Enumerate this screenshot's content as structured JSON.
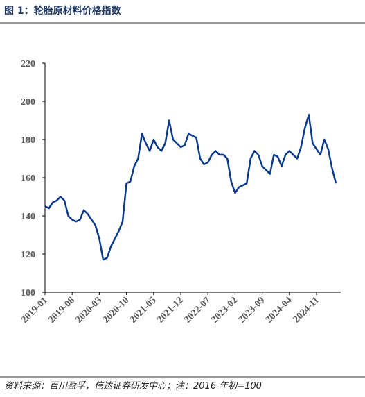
{
  "chart_data": {
    "type": "line",
    "title": "图 1：轮胎原材料价格指数",
    "source": "资料来源：百川盈孚，信达证券研发中心；注：2016 年初=100",
    "x": [
      "2019-01",
      "2019-02",
      "2019-03",
      "2019-04",
      "2019-05",
      "2019-06",
      "2019-07",
      "2019-08",
      "2019-09",
      "2019-10",
      "2019-11",
      "2019-12",
      "2020-01",
      "2020-02",
      "2020-03",
      "2020-04",
      "2020-05",
      "2020-06",
      "2020-07",
      "2020-08",
      "2020-09",
      "2020-10",
      "2020-11",
      "2020-12",
      "2021-01",
      "2021-02",
      "2021-03",
      "2021-04",
      "2021-05",
      "2021-06",
      "2021-07",
      "2021-08",
      "2021-09",
      "2021-10",
      "2021-11",
      "2021-12",
      "2022-01",
      "2022-02",
      "2022-03",
      "2022-04",
      "2022-05",
      "2022-06",
      "2022-07",
      "2022-08",
      "2022-09",
      "2022-10",
      "2022-11",
      "2022-12",
      "2023-01",
      "2023-02",
      "2023-03",
      "2023-04",
      "2023-05",
      "2023-06",
      "2023-07",
      "2023-08",
      "2023-09",
      "2023-10",
      "2023-11",
      "2023-12",
      "2024-01",
      "2024-02",
      "2024-03",
      "2024-04",
      "2024-05",
      "2024-06",
      "2024-07",
      "2024-08",
      "2024-09",
      "2024-10",
      "2024-11",
      "2024-12",
      "2025-01",
      "2025-02",
      "2025-03",
      "2025-04"
    ],
    "series": [
      {
        "color": "#0b3a8c",
        "values": [
          145,
          144,
          147,
          148,
          150,
          148,
          140,
          138,
          137,
          138,
          143,
          141,
          138,
          135,
          128,
          117,
          118,
          124,
          128,
          132,
          137,
          157,
          158,
          166,
          170,
          183,
          178,
          174,
          180,
          176,
          174,
          178,
          190,
          180,
          178,
          176,
          177,
          183,
          182,
          181,
          170,
          167,
          168,
          172,
          174,
          172,
          172,
          170,
          158,
          152,
          155,
          156,
          157,
          170,
          174,
          172,
          166,
          164,
          162,
          172,
          171,
          166,
          172,
          174,
          172,
          170,
          176,
          186,
          193,
          178,
          175,
          172,
          180,
          175,
          165,
          157
        ]
      }
    ],
    "xticks": [
      "2019-01",
      "2019-08",
      "2020-03",
      "2020-10",
      "2021-05",
      "2021-12",
      "2022-07",
      "2023-02",
      "2023-09",
      "2024-04",
      "2024-11"
    ],
    "ylim": [
      100,
      220
    ],
    "yticks": [
      100,
      120,
      140,
      160,
      180,
      200,
      220
    ]
  }
}
